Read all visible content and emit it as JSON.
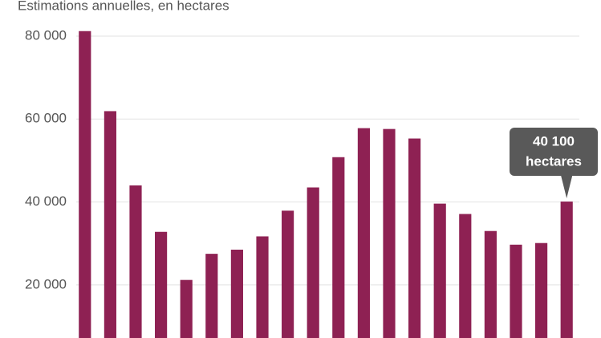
{
  "chart_data": {
    "type": "bar",
    "subtitle": "Estimations annuelles, en hectares",
    "categories": [
      null,
      null,
      null,
      null,
      null,
      null,
      null,
      null,
      null,
      null,
      null,
      null,
      null,
      null,
      null,
      null,
      null,
      null,
      null,
      null
    ],
    "values": [
      81200,
      61900,
      44000,
      32800,
      21200,
      27500,
      28500,
      31700,
      37900,
      43500,
      50800,
      57800,
      57600,
      55300,
      39600,
      37100,
      33000,
      29700,
      30100,
      40100
    ],
    "value_labels": [
      null,
      null,
      null,
      null,
      null,
      null,
      null,
      null,
      null,
      null,
      null,
      null,
      null,
      null,
      null,
      null,
      null,
      null,
      null,
      "40 100"
    ],
    "value_label_unit": "hectares",
    "color": "#8e2153",
    "ylim": [
      7200,
      88700
    ],
    "yticks": [
      {
        "value": 20000,
        "label": "20 000"
      },
      {
        "value": 40000,
        "label": "40 000"
      },
      {
        "value": 60000,
        "label": "60 000"
      },
      {
        "value": 80000,
        "label": "80 000"
      }
    ],
    "grid": true
  }
}
